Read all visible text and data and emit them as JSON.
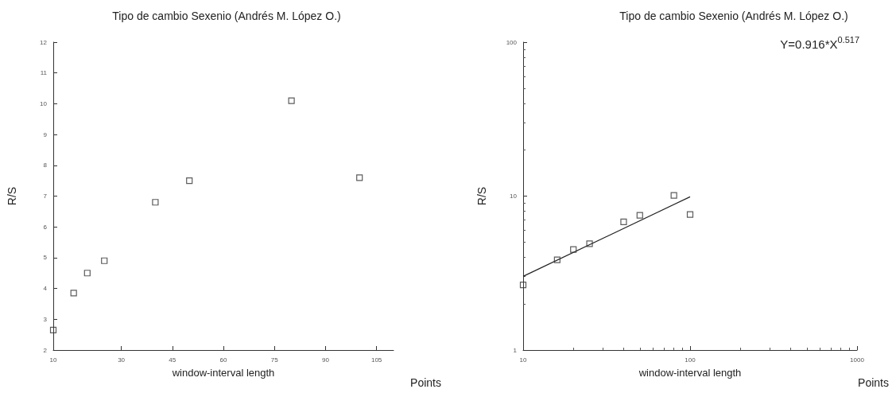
{
  "chart_data": [
    {
      "type": "scatter",
      "title": "Tipo de cambio Sexenio (Andrés M. López O.)",
      "xlabel": "window-interval length",
      "ylabel": "R/S",
      "annotations": [
        "Points"
      ],
      "x": [
        10,
        16,
        20,
        25,
        40,
        50,
        80,
        100
      ],
      "series": [
        {
          "color": "#333333",
          "values": [
            2.65,
            3.85,
            4.5,
            4.9,
            6.8,
            7.5,
            10.1,
            7.6
          ]
        }
      ],
      "xlim": [
        10,
        110
      ],
      "xticks": [
        10,
        30,
        45,
        60,
        75,
        90,
        105
      ],
      "ylim": [
        2,
        12
      ],
      "yticks": [
        2,
        3,
        4,
        5,
        6,
        7,
        8,
        9,
        10,
        11,
        12
      ],
      "marker": "square"
    },
    {
      "type": "scatter",
      "title": "Tipo de cambio Sexenio (Andrés M. López O.)",
      "xlabel": "window-interval length",
      "ylabel": "R/S",
      "annotations": [
        "Y=0.916*X$^{0.517}$",
        "Points"
      ],
      "series": [
        {
          "color": "#333333",
          "x": [
            10,
            16,
            20,
            25,
            40,
            50,
            80,
            100
          ],
          "values": [
            2.65,
            3.85,
            4.5,
            4.9,
            6.8,
            7.5,
            10.1,
            7.6
          ]
        },
        {
          "type": "line",
          "marker": "none",
          "color": "#222222",
          "x": [
            10,
            100
          ],
          "values": [
            3.01,
            9.9
          ]
        }
      ],
      "xlim": [
        10,
        1000
      ],
      "xticks": [
        10,
        100,
        1000
      ],
      "ylim": [
        1,
        100
      ],
      "yticks": [
        1,
        10,
        100
      ],
      "log": "xy",
      "marker": "square"
    }
  ]
}
